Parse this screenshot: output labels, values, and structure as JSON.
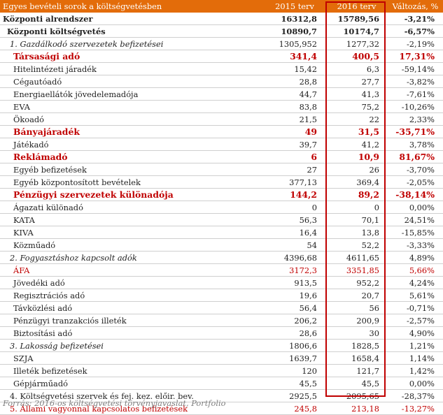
{
  "header": {
    "name": "Egyes bevételi sorok a költségvetésben",
    "y2015": "2015 terv",
    "y2016": "2016 terv",
    "change": "Változás, %"
  },
  "rows": [
    {
      "style": "lvl0",
      "name": "Központi alrendszer",
      "v2015": "16312,8",
      "v2016": "15789,56",
      "change": "-3,21%"
    },
    {
      "style": "lvl1",
      "name": "Központi költségvetés",
      "v2015": "10890,7",
      "v2016": "10174,7",
      "change": "-6,57%"
    },
    {
      "style": "sec",
      "name": "1. Gazdálkodó szervezetek befizetései",
      "v2015": "1305,952",
      "v2016": "1277,32",
      "change": "-2,19%"
    },
    {
      "style": "hl",
      "name": "Társasági adó",
      "v2015": "341,4",
      "v2016": "400,5",
      "change": "17,31%"
    },
    {
      "style": "item",
      "name": "Hitelintézeti járadék",
      "v2015": "15,42",
      "v2016": "6,3",
      "change": "-59,14%"
    },
    {
      "style": "item",
      "name": "Cégautóadó",
      "v2015": "28,8",
      "v2016": "27,7",
      "change": "-3,82%"
    },
    {
      "style": "item",
      "name": "Energiaellátók jövedelemadója",
      "v2015": "44,7",
      "v2016": "41,3",
      "change": "-7,61%"
    },
    {
      "style": "item",
      "name": "EVA",
      "v2015": "83,8",
      "v2016": "75,2",
      "change": "-10,26%"
    },
    {
      "style": "item",
      "name": "Ökoadó",
      "v2015": "21,5",
      "v2016": "22",
      "change": "2,33%"
    },
    {
      "style": "hl",
      "name": "Bányajáradék",
      "v2015": "49",
      "v2016": "31,5",
      "change": "-35,71%"
    },
    {
      "style": "item",
      "name": "Játékadó",
      "v2015": "39,7",
      "v2016": "41,2",
      "change": "3,78%"
    },
    {
      "style": "hl",
      "name": "Reklámadó",
      "v2015": "6",
      "v2016": "10,9",
      "change": "81,67%"
    },
    {
      "style": "item",
      "name": "Egyéb befizetések",
      "v2015": "27",
      "v2016": "26",
      "change": "-3,70%"
    },
    {
      "style": "item",
      "name": "Egyéb központosított bevételek",
      "v2015": "377,13",
      "v2016": "369,4",
      "change": "-2,05%"
    },
    {
      "style": "hl",
      "name": "Pénzügyi szervezetek különadója",
      "v2015": "144,2",
      "v2016": "89,2",
      "change": "-38,14%"
    },
    {
      "style": "item",
      "name": "Ágazati különadó",
      "v2015": "0",
      "v2016": "0",
      "change": "0,00%"
    },
    {
      "style": "item",
      "name": "KATA",
      "v2015": "56,3",
      "v2016": "70,1",
      "change": "24,51%"
    },
    {
      "style": "item",
      "name": "KIVA",
      "v2015": "16,4",
      "v2016": "13,8",
      "change": "-15,85%"
    },
    {
      "style": "item",
      "name": "Közműadó",
      "v2015": "54",
      "v2016": "52,2",
      "change": "-3,33%"
    },
    {
      "style": "sec",
      "name": "2. Fogyasztáshoz kapcsolt adók",
      "v2015": "4396,68",
      "v2016": "4611,65",
      "change": "4,89%"
    },
    {
      "style": "red",
      "name": "ÁFA",
      "v2015": "3172,3",
      "v2016": "3351,85",
      "change": "5,66%"
    },
    {
      "style": "item",
      "name": "Jövedéki adó",
      "v2015": "913,5",
      "v2016": "952,2",
      "change": "4,24%"
    },
    {
      "style": "item",
      "name": "Regisztrációs adó",
      "v2015": "19,6",
      "v2016": "20,7",
      "change": "5,61%"
    },
    {
      "style": "item",
      "name": "Távközlési adó",
      "v2015": "56,4",
      "v2016": "56",
      "change": "-0,71%"
    },
    {
      "style": "item",
      "name": "Pénzügyi tranzakciós illeték",
      "v2015": "206,2",
      "v2016": "200,9",
      "change": "-2,57%"
    },
    {
      "style": "item",
      "name": "Biztosítási adó",
      "v2015": "28,6",
      "v2016": "30",
      "change": "4,90%"
    },
    {
      "style": "sec",
      "name": "3. Lakosság befizetései",
      "v2015": "1806,6",
      "v2016": "1828,5",
      "change": "1,21%"
    },
    {
      "style": "item",
      "name": "SZJA",
      "v2015": "1639,7",
      "v2016": "1658,4",
      "change": "1,14%"
    },
    {
      "style": "item",
      "name": "Illeték befizetések",
      "v2015": "120",
      "v2016": "121,7",
      "change": "1,42%"
    },
    {
      "style": "item",
      "name": "Gépjárműadó",
      "v2015": "45,5",
      "v2016": "45,5",
      "change": "0,00%"
    },
    {
      "style": "plain-sec",
      "name": "4. Költségvetési szervek és fej. kez. előir. bev.",
      "v2015": "2925,5",
      "v2016": "2095,65",
      "change": "-28,37%"
    },
    {
      "style": "red-sec",
      "name": "5. Állami vagyonnal kapcsolatos befizetések",
      "v2015": "245,8",
      "v2016": "213,18",
      "change": "-13,27%"
    }
  ],
  "source": "Forrás: 2016-os költségvetési törvényjavaslat, Portfolio",
  "colors": {
    "header_bg": "#e36c0a",
    "highlight": "#c00000",
    "source": "#7f7f7f"
  }
}
